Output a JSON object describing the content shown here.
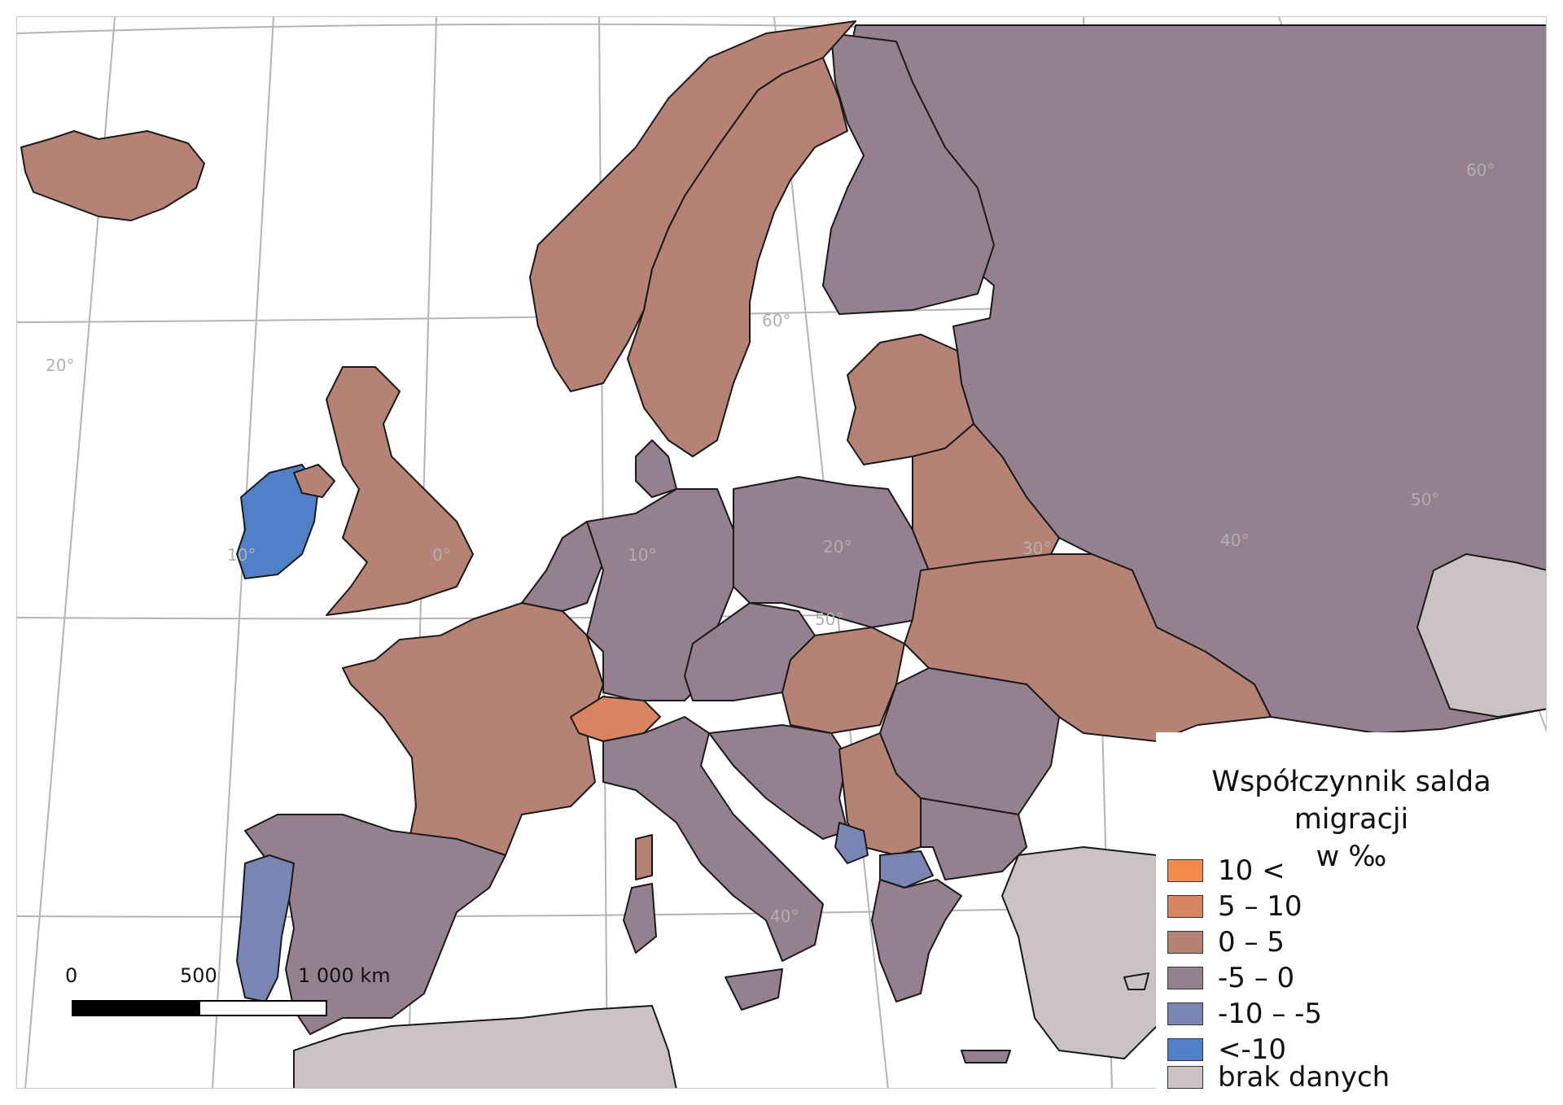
{
  "legend": {
    "title_line1": "Współczynnik salda migracji",
    "title_line2": "w ‰",
    "items": [
      {
        "label": "10 <",
        "color": "#f48a4c"
      },
      {
        "label": "5 – 10",
        "color": "#d98561"
      },
      {
        "label": "0 – 5",
        "color": "#b68276"
      },
      {
        "label": "-5 – 0",
        "color": "#95808f"
      },
      {
        "label": "-10 – -5",
        "color": "#7985b3"
      },
      {
        "label": "<-10",
        "color": "#4f80c8"
      },
      {
        "label": "brak danych",
        "color": "#cbc3c3"
      }
    ]
  },
  "scale": {
    "label_0": "0",
    "label_500": "500",
    "label_1000": "1 000 km"
  },
  "graticule_labels": {
    "lon_20w": "20°",
    "lon_10w": "10°",
    "lon_0": "0°",
    "lon_10e": "10°",
    "lon_20e": "20°",
    "lon_30e": "30°",
    "lon_40e": "40°",
    "lat_60": "60°",
    "lat_50": "50°",
    "lat_40": "40°",
    "lat_60_east": "60°",
    "lat_50_east": "50°"
  },
  "map_colors": {
    "sea": "#ffffff",
    "graticule": "#b4b4b4",
    "border": "#1a1a1a"
  }
}
